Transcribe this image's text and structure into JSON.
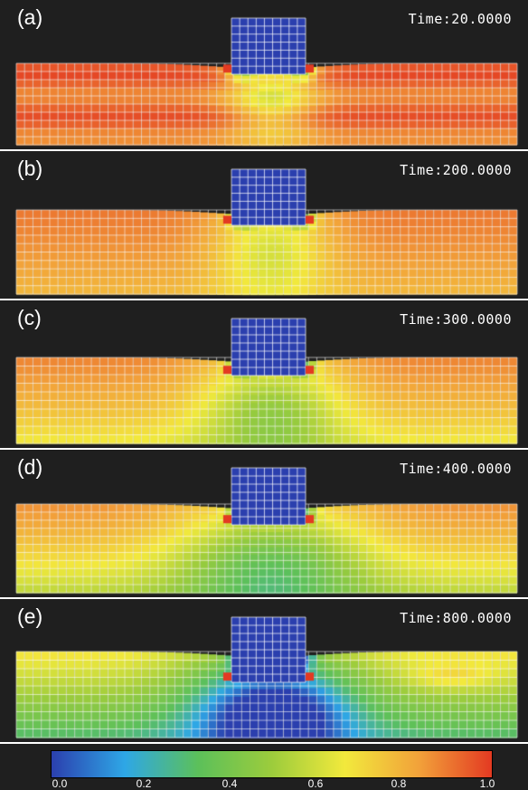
{
  "panels": [
    {
      "label": "(a)",
      "time": "Time:20.0000",
      "stage": 0
    },
    {
      "label": "(b)",
      "time": "Time:200.0000",
      "stage": 1
    },
    {
      "label": "(c)",
      "time": "Time:300.0000",
      "stage": 2
    },
    {
      "label": "(d)",
      "time": "Time:400.0000",
      "stage": 3
    },
    {
      "label": "(e)",
      "time": "Time:800.0000",
      "stage": 4
    }
  ],
  "colorbar": {
    "ticks": [
      "0.0",
      "0.2",
      "0.4",
      "0.6",
      "0.8",
      "1.0"
    ],
    "range": [
      0.0,
      1.0
    ],
    "colors": [
      "#2b3fae",
      "#2ea7e6",
      "#5cc05a",
      "#9ccc3c",
      "#f2e93c",
      "#f2a23a",
      "#e33a22"
    ]
  }
}
